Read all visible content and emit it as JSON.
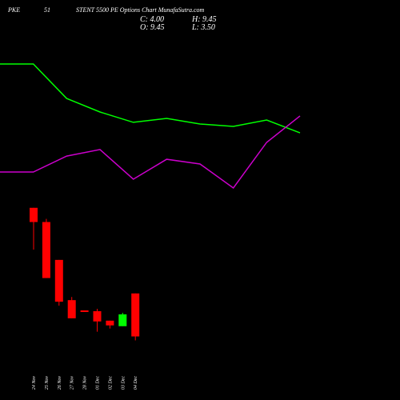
{
  "header": {
    "parts": [
      "PKE",
      "51",
      "STENT 5500 PE Options Chart MunafaSutra.com"
    ],
    "close": "C: 4.00",
    "high": "H: 9.45",
    "open": "O: 9.45",
    "low": "L: 3.50"
  },
  "chart_data": [
    {
      "type": "line",
      "ylim": [
        0,
        100
      ],
      "series": [
        {
          "color": "#00ff00",
          "values": [
            89.5,
            89.5,
            66.8,
            57.9,
            51.1,
            53.7,
            50,
            48.4,
            52.6,
            44.2
          ]
        },
        {
          "color": "#cc00cc",
          "values": [
            18.4,
            18.4,
            28.9,
            33.2,
            13.7,
            26.8,
            23.7,
            7.9,
            37.9,
            55.3
          ]
        }
      ]
    },
    {
      "type": "candlestick",
      "ylim": [
        0,
        22
      ],
      "categories": [
        "24 Nov",
        "25 Nov",
        "26 Nov",
        "27 Nov",
        "28 Nov",
        "01 Dec",
        "02 Dec",
        "03 Dec",
        "04 Dec"
      ],
      "open": [
        20.3,
        18.5,
        13.7,
        8.6,
        7.3,
        7.2,
        6.0,
        5.3,
        9.45
      ],
      "high": [
        20.3,
        18.9,
        13.7,
        9.0,
        7.3,
        7.5,
        6.0,
        7.0,
        9.45
      ],
      "low": [
        15.0,
        11.4,
        7.9,
        6.3,
        7.1,
        4.6,
        5.0,
        5.3,
        3.5
      ],
      "close": [
        18.5,
        11.4,
        8.4,
        6.3,
        7.1,
        5.9,
        5.4,
        6.8,
        4.0
      ],
      "up_color": "#00ff00",
      "down_color": "#ff0000"
    }
  ]
}
